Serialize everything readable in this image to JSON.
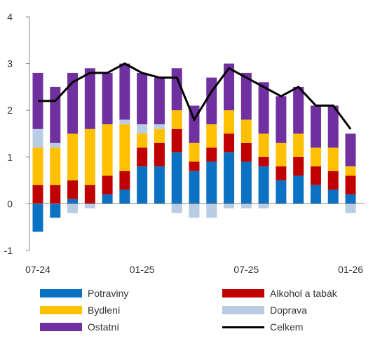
{
  "chart_data": {
    "type": "bar",
    "stacked": true,
    "categories": [
      "07-24",
      "08-24",
      "09-24",
      "10-24",
      "11-24",
      "12-24",
      "01-25",
      "02-25",
      "03-25",
      "04-25",
      "05-25",
      "06-25",
      "07-25",
      "08-25",
      "09-25",
      "10-25",
      "11-25",
      "12-25",
      "01-26"
    ],
    "tick_labels": [
      "07-24",
      "01-25",
      "07-25",
      "01-26"
    ],
    "ylim": [
      -1,
      4
    ],
    "yticks": [
      -1,
      0,
      1,
      2,
      3,
      4
    ],
    "grid": false,
    "legend_position": "bottom",
    "series": [
      {
        "name": "Potraviny",
        "color": "#0b72c3",
        "values": [
          -0.6,
          -0.3,
          0.1,
          0.0,
          0.2,
          0.3,
          0.8,
          0.8,
          1.1,
          0.7,
          0.9,
          1.1,
          0.9,
          0.8,
          0.5,
          0.6,
          0.4,
          0.3,
          0.2
        ]
      },
      {
        "name": "Alkohol a tabák",
        "color": "#c00000",
        "values": [
          0.4,
          0.4,
          0.4,
          0.4,
          0.4,
          0.4,
          0.4,
          0.5,
          0.5,
          0.2,
          0.3,
          0.4,
          0.4,
          0.2,
          0.3,
          0.4,
          0.4,
          0.4,
          0.4
        ]
      },
      {
        "name": "Bydlení",
        "color": "#ffc000",
        "values": [
          0.8,
          0.8,
          1.0,
          1.2,
          1.1,
          1.0,
          0.3,
          0.3,
          0.4,
          0.4,
          0.5,
          0.5,
          0.5,
          0.5,
          0.5,
          0.5,
          0.4,
          0.5,
          0.2
        ]
      },
      {
        "name": "Doprava",
        "color": "#b8cce4",
        "values": [
          0.4,
          0.1,
          -0.2,
          -0.1,
          0.0,
          0.1,
          0.2,
          0.1,
          -0.2,
          -0.3,
          -0.3,
          -0.1,
          -0.1,
          -0.1,
          0.0,
          0.0,
          0.0,
          0.0,
          -0.2
        ]
      },
      {
        "name": "Ostatní",
        "color": "#7030a0",
        "values": [
          1.2,
          1.2,
          1.3,
          1.3,
          1.1,
          1.2,
          1.1,
          1.0,
          0.9,
          0.8,
          1.0,
          1.0,
          1.0,
          1.1,
          1.0,
          1.0,
          0.9,
          0.9,
          0.7
        ]
      },
      {
        "name": "Celkem",
        "type": "line",
        "color": "#000000",
        "values": [
          2.2,
          2.2,
          2.6,
          2.8,
          2.8,
          3.0,
          2.8,
          2.7,
          2.7,
          1.8,
          2.4,
          2.9,
          2.7,
          2.5,
          2.3,
          2.5,
          2.1,
          2.1,
          1.6
        ]
      }
    ]
  },
  "legend": {
    "potraviny": "Potraviny",
    "alkohol": "Alkohol a tabák",
    "bydleni": "Bydlení",
    "doprava": "Doprava",
    "ostatni": "Ostatní",
    "celkem": "Celkem"
  }
}
